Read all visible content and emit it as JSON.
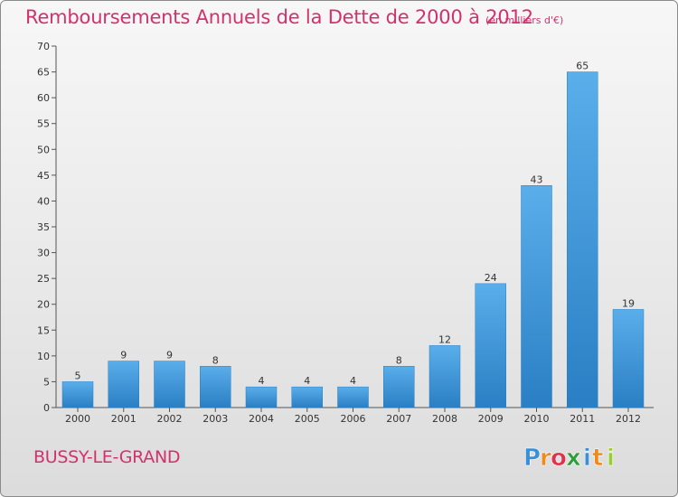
{
  "header": {
    "title": "Remboursements Annuels de la Dette de 2000 à 2012",
    "unit": "(en milliers d'€)"
  },
  "footer": {
    "commune": "BUSSY-LE-GRAND",
    "logo_letters": [
      "P",
      "r",
      "o",
      "x",
      "i",
      "t",
      "i"
    ],
    "logo_colors": [
      "#3a8fd8",
      "#f08a1c",
      "#e0324b",
      "#2e9e3c",
      "#3a8fd8",
      "#f08a1c",
      "#9acd32"
    ]
  },
  "colors": {
    "title": "#d2326c",
    "bar_light": "#5aaeea",
    "bar_dark": "#2a7fc4"
  },
  "chart_data": {
    "type": "bar",
    "categories": [
      "2000",
      "2001",
      "2002",
      "2003",
      "2004",
      "2005",
      "2006",
      "2007",
      "2008",
      "2009",
      "2010",
      "2011",
      "2012"
    ],
    "values": [
      5,
      9,
      9,
      8,
      4,
      4,
      4,
      8,
      12,
      24,
      43,
      65,
      19
    ],
    "ylim": [
      0,
      70
    ],
    "yticks": [
      0,
      5,
      10,
      15,
      20,
      25,
      30,
      35,
      40,
      45,
      50,
      55,
      60,
      65,
      70
    ],
    "grid": false,
    "legend": "none"
  }
}
